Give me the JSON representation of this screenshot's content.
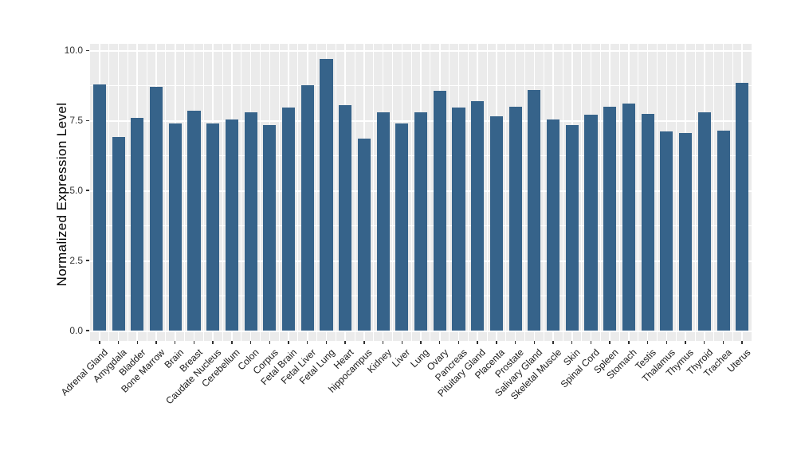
{
  "figure": {
    "title": ""
  },
  "chart_data": {
    "type": "bar",
    "title": "",
    "xlabel": "",
    "ylabel": "Normalized Expression Level",
    "categories": [
      "Adrenal Gland",
      "Amygdala",
      "Bladder",
      "Bone Marrow",
      "Brain",
      "Breast",
      "Caudate Nucleus",
      "Cerebellum",
      "Colon",
      "Corpus",
      "Fetal Brain",
      "Fetal Liver",
      "Fetal Lung",
      "Heart",
      "hippocampus",
      "Kidney",
      "Liver",
      "Lung",
      "Ovary",
      "Pancreas",
      "Pituitary Gland",
      "Placenta",
      "Prostate",
      "Salivary Gland",
      "Skeletal Muscle",
      "Skin",
      "Spinal Cord",
      "Spleen",
      "Stomach",
      "Testis",
      "Thalamus",
      "Thymus",
      "Thyroid",
      "Trachea",
      "Uterus"
    ],
    "values": [
      8.8,
      6.9,
      7.6,
      8.7,
      7.4,
      7.85,
      7.4,
      7.55,
      7.8,
      7.35,
      7.95,
      8.75,
      9.7,
      8.05,
      6.85,
      7.8,
      7.4,
      7.8,
      8.55,
      7.95,
      8.2,
      7.65,
      8.0,
      8.6,
      7.55,
      7.35,
      7.7,
      8.0,
      8.1,
      7.75,
      7.1,
      7.05,
      7.8,
      7.15,
      8.85
    ],
    "y_ticks": [
      0.0,
      2.5,
      5.0,
      7.5,
      10.0
    ],
    "y_tick_labels": [
      "0.0",
      "2.5",
      "5.0",
      "7.5",
      "10.0"
    ],
    "y_minor_ticks": [
      1.25,
      3.75,
      6.25,
      8.75
    ],
    "ylim": [
      0,
      10
    ],
    "grid": "major and minor, white on gray panel",
    "legend": "none",
    "bar_color": "#36638a",
    "panel_background": "#ebebeb",
    "grid_color": "#ffffff",
    "axis_text_color": "#333333",
    "axis_title_color": "#000000"
  }
}
